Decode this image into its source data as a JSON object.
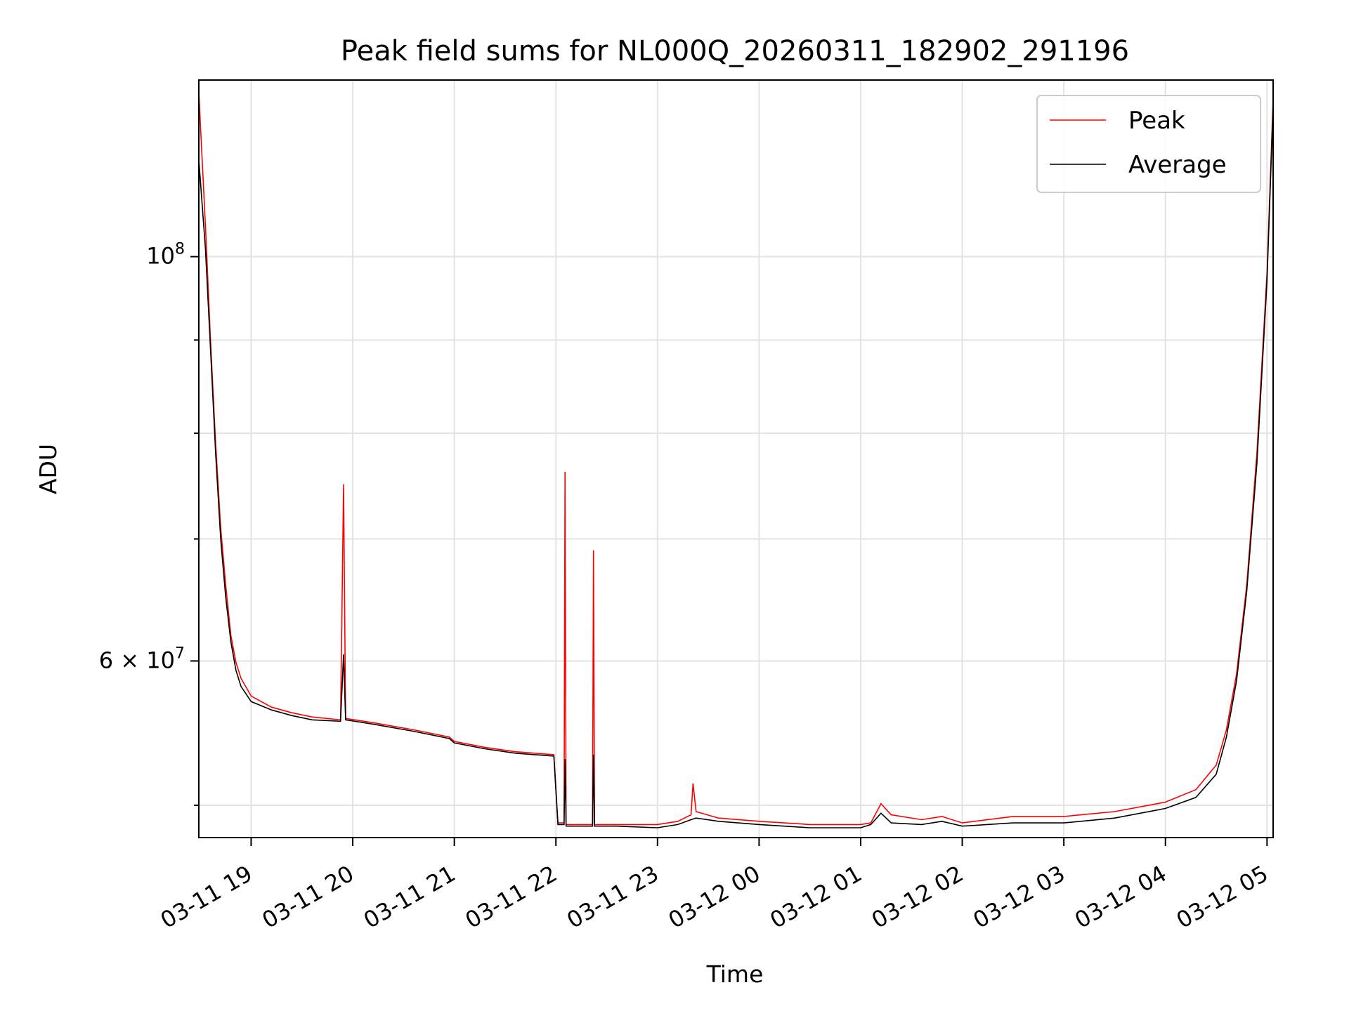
{
  "chart_data": {
    "type": "line",
    "title": "Peak field sums for NL000Q_20260311_182902_291196",
    "xlabel": "Time",
    "ylabel": "ADU",
    "yscale": "log",
    "ylim": [
      48000000,
      125000000
    ],
    "xlim_hours": [
      18.485,
      29.06
    ],
    "grid": true,
    "x_tick_labels": [
      {
        "h": 19,
        "label": "03-11 19"
      },
      {
        "h": 20,
        "label": "03-11 20"
      },
      {
        "h": 21,
        "label": "03-11 21"
      },
      {
        "h": 22,
        "label": "03-11 22"
      },
      {
        "h": 23,
        "label": "03-11 23"
      },
      {
        "h": 24,
        "label": "03-12 00"
      },
      {
        "h": 25,
        "label": "03-12 01"
      },
      {
        "h": 26,
        "label": "03-12 02"
      },
      {
        "h": 27,
        "label": "03-12 03"
      },
      {
        "h": 28,
        "label": "03-12 04"
      },
      {
        "h": 29,
        "label": "03-12 05"
      }
    ],
    "y_major_ticks": [
      {
        "value": 100000000,
        "base": "10",
        "exp": "8",
        "prefix": ""
      },
      {
        "value": 60000000,
        "base": "10",
        "exp": "7",
        "prefix": "6 × "
      }
    ],
    "y_minor_ticks": [
      50000000,
      70000000,
      80000000,
      90000000
    ],
    "legend": {
      "position": "top-right",
      "entries": [
        {
          "name": "Peak",
          "color": "#ff0000"
        },
        {
          "name": "Average",
          "color": "#000000"
        }
      ]
    },
    "series": [
      {
        "name": "Peak",
        "color": "#ff0000",
        "points": [
          [
            18.485,
            123000000
          ],
          [
            18.55,
            104000000
          ],
          [
            18.6,
            90000000
          ],
          [
            18.65,
            79000000
          ],
          [
            18.7,
            71000000
          ],
          [
            18.75,
            66000000
          ],
          [
            18.8,
            62000000
          ],
          [
            18.85,
            59900000
          ],
          [
            18.9,
            58700000
          ],
          [
            19.0,
            57400000
          ],
          [
            19.2,
            56600000
          ],
          [
            19.4,
            56200000
          ],
          [
            19.6,
            55900000
          ],
          [
            19.88,
            55700000
          ],
          [
            19.91,
            75000000
          ],
          [
            19.93,
            55800000
          ],
          [
            20.2,
            55500000
          ],
          [
            20.6,
            55000000
          ],
          [
            20.95,
            54500000
          ],
          [
            21.0,
            54200000
          ],
          [
            21.3,
            53800000
          ],
          [
            21.6,
            53500000
          ],
          [
            21.98,
            53300000
          ],
          [
            22.02,
            48900000
          ],
          [
            22.08,
            48900000
          ],
          [
            22.09,
            76200000
          ],
          [
            22.1,
            48800000
          ],
          [
            22.36,
            48800000
          ],
          [
            22.37,
            69000000
          ],
          [
            22.38,
            48800000
          ],
          [
            22.6,
            48800000
          ],
          [
            23.0,
            48800000
          ],
          [
            23.2,
            49000000
          ],
          [
            23.33,
            49400000
          ],
          [
            23.35,
            51400000
          ],
          [
            23.38,
            49600000
          ],
          [
            23.6,
            49200000
          ],
          [
            24.0,
            49000000
          ],
          [
            24.5,
            48800000
          ],
          [
            25.0,
            48800000
          ],
          [
            25.1,
            48900000
          ],
          [
            25.2,
            50100000
          ],
          [
            25.3,
            49400000
          ],
          [
            25.6,
            49100000
          ],
          [
            25.8,
            49300000
          ],
          [
            26.0,
            48900000
          ],
          [
            26.5,
            49300000
          ],
          [
            27.0,
            49300000
          ],
          [
            27.5,
            49600000
          ],
          [
            28.0,
            50200000
          ],
          [
            28.3,
            51000000
          ],
          [
            28.5,
            52600000
          ],
          [
            28.6,
            55000000
          ],
          [
            28.7,
            59000000
          ],
          [
            28.8,
            66000000
          ],
          [
            28.9,
            78000000
          ],
          [
            29.0,
            98000000
          ],
          [
            29.06,
            122000000
          ]
        ]
      },
      {
        "name": "Average",
        "color": "#000000",
        "points": [
          [
            18.485,
            113000000
          ],
          [
            18.55,
            101000000
          ],
          [
            18.6,
            89000000
          ],
          [
            18.65,
            78000000
          ],
          [
            18.7,
            70000000
          ],
          [
            18.75,
            65000000
          ],
          [
            18.8,
            61500000
          ],
          [
            18.85,
            59300000
          ],
          [
            18.9,
            58100000
          ],
          [
            19.0,
            57000000
          ],
          [
            19.2,
            56400000
          ],
          [
            19.4,
            56000000
          ],
          [
            19.6,
            55700000
          ],
          [
            19.88,
            55600000
          ],
          [
            19.91,
            60500000
          ],
          [
            19.93,
            55700000
          ],
          [
            20.2,
            55400000
          ],
          [
            20.6,
            54900000
          ],
          [
            20.95,
            54400000
          ],
          [
            21.0,
            54100000
          ],
          [
            21.3,
            53700000
          ],
          [
            21.6,
            53400000
          ],
          [
            21.98,
            53200000
          ],
          [
            22.02,
            48800000
          ],
          [
            22.08,
            48800000
          ],
          [
            22.09,
            53000000
          ],
          [
            22.1,
            48700000
          ],
          [
            22.36,
            48700000
          ],
          [
            22.37,
            53300000
          ],
          [
            22.38,
            48700000
          ],
          [
            22.6,
            48700000
          ],
          [
            23.0,
            48600000
          ],
          [
            23.2,
            48800000
          ],
          [
            23.33,
            49100000
          ],
          [
            23.38,
            49200000
          ],
          [
            23.6,
            49000000
          ],
          [
            24.0,
            48800000
          ],
          [
            24.5,
            48600000
          ],
          [
            25.0,
            48600000
          ],
          [
            25.1,
            48800000
          ],
          [
            25.2,
            49500000
          ],
          [
            25.3,
            48900000
          ],
          [
            25.6,
            48800000
          ],
          [
            25.8,
            49000000
          ],
          [
            26.0,
            48700000
          ],
          [
            26.5,
            48900000
          ],
          [
            27.0,
            48900000
          ],
          [
            27.5,
            49200000
          ],
          [
            28.0,
            49800000
          ],
          [
            28.3,
            50500000
          ],
          [
            28.5,
            52000000
          ],
          [
            28.6,
            54500000
          ],
          [
            28.7,
            58500000
          ],
          [
            28.8,
            65500000
          ],
          [
            28.9,
            77000000
          ],
          [
            29.0,
            97000000
          ],
          [
            29.06,
            121000000
          ]
        ]
      }
    ]
  }
}
